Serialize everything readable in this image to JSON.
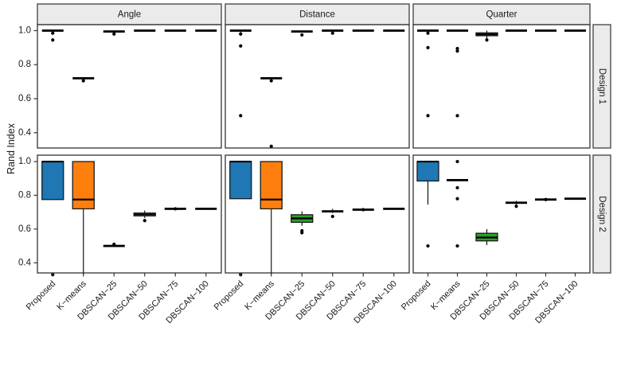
{
  "chart_data": {
    "type": "boxplot",
    "title": "",
    "ylabel": "Rand Index",
    "xlabel": "",
    "facet_cols": [
      "Angle",
      "Distance",
      "Quarter"
    ],
    "facet_rows": [
      "Design 1",
      "Design 2"
    ],
    "categories": [
      "Proposed",
      "K−means",
      "DBSCAN−25",
      "DBSCAN−50",
      "DBSCAN−75",
      "DBSCAN−100"
    ],
    "ytick_labels": [
      "1.0",
      "0.8",
      "0.6",
      "0.4"
    ],
    "ytick_values": [
      1.0,
      0.8,
      0.6,
      0.4
    ],
    "ylim": [
      0.31,
      1.04
    ],
    "grid": false,
    "legend": "none",
    "colors": {
      "proposed_fill": "#1f77b4",
      "kmeans_fill": "#ff7f0e",
      "dbscan25_fill": "#2ca02c",
      "default_fill": "#ffffff",
      "strip_fill": "#ebebeb",
      "panel_border": "#333333",
      "line": "#000000"
    },
    "panels": [
      {
        "row": "Design 1",
        "col": "Angle",
        "boxes": [
          {
            "category": "Proposed",
            "fill": "#1f77b4",
            "q1": 1.0,
            "med": 1.0,
            "q3": 1.0,
            "lo": 0.99,
            "hi": 1.0,
            "out": [
              0.985,
              0.945
            ]
          },
          {
            "category": "K−means",
            "fill": "#ff7f0e",
            "q1": 0.72,
            "med": 0.72,
            "q3": 0.72,
            "lo": 0.72,
            "hi": 0.72,
            "out": [
              0.705
            ]
          },
          {
            "category": "DBSCAN−25",
            "fill": "#2ca02c",
            "q1": 0.995,
            "med": 0.995,
            "q3": 0.995,
            "lo": 0.995,
            "hi": 0.995,
            "out": [
              0.98
            ]
          },
          {
            "category": "DBSCAN−50",
            "fill": "#ffffff",
            "q1": 1.0,
            "med": 1.0,
            "q3": 1.0,
            "lo": 1.0,
            "hi": 1.0,
            "out": []
          },
          {
            "category": "DBSCAN−75",
            "fill": "#ffffff",
            "q1": 1.0,
            "med": 1.0,
            "q3": 1.0,
            "lo": 1.0,
            "hi": 1.0,
            "out": []
          },
          {
            "category": "DBSCAN−100",
            "fill": "#ffffff",
            "q1": 1.0,
            "med": 1.0,
            "q3": 1.0,
            "lo": 1.0,
            "hi": 1.0,
            "out": []
          }
        ]
      },
      {
        "row": "Design 1",
        "col": "Distance",
        "boxes": [
          {
            "category": "Proposed",
            "fill": "#1f77b4",
            "q1": 1.0,
            "med": 1.0,
            "q3": 1.0,
            "lo": 0.99,
            "hi": 1.0,
            "out": [
              0.98,
              0.91,
              0.5
            ]
          },
          {
            "category": "K−means",
            "fill": "#ff7f0e",
            "q1": 0.72,
            "med": 0.72,
            "q3": 0.72,
            "lo": 0.72,
            "hi": 0.72,
            "out": [
              0.705,
              0.32
            ]
          },
          {
            "category": "DBSCAN−25",
            "fill": "#2ca02c",
            "q1": 0.995,
            "med": 0.995,
            "q3": 0.995,
            "lo": 0.995,
            "hi": 0.995,
            "out": [
              0.975
            ]
          },
          {
            "category": "DBSCAN−50",
            "fill": "#ffffff",
            "q1": 1.0,
            "med": 1.0,
            "q3": 1.0,
            "lo": 1.0,
            "hi": 1.0,
            "out": [
              0.985
            ]
          },
          {
            "category": "DBSCAN−75",
            "fill": "#ffffff",
            "q1": 1.0,
            "med": 1.0,
            "q3": 1.0,
            "lo": 1.0,
            "hi": 1.0,
            "out": []
          },
          {
            "category": "DBSCAN−100",
            "fill": "#ffffff",
            "q1": 1.0,
            "med": 1.0,
            "q3": 1.0,
            "lo": 1.0,
            "hi": 1.0,
            "out": []
          }
        ]
      },
      {
        "row": "Design 1",
        "col": "Quarter",
        "boxes": [
          {
            "category": "Proposed",
            "fill": "#1f77b4",
            "q1": 1.0,
            "med": 1.0,
            "q3": 1.0,
            "lo": 1.0,
            "hi": 1.0,
            "out": [
              0.985,
              0.9,
              0.5
            ]
          },
          {
            "category": "K−means",
            "fill": "#ff7f0e",
            "q1": 1.0,
            "med": 1.0,
            "q3": 1.0,
            "lo": 1.0,
            "hi": 1.0,
            "out": [
              0.895,
              0.88,
              0.5
            ]
          },
          {
            "category": "DBSCAN−25",
            "fill": "#2ca02c",
            "q1": 0.97,
            "med": 0.978,
            "q3": 0.987,
            "lo": 0.952,
            "hi": 1.0,
            "out": [
              0.945
            ]
          },
          {
            "category": "DBSCAN−50",
            "fill": "#ffffff",
            "q1": 1.0,
            "med": 1.0,
            "q3": 1.0,
            "lo": 1.0,
            "hi": 1.0,
            "out": []
          },
          {
            "category": "DBSCAN−75",
            "fill": "#ffffff",
            "q1": 1.0,
            "med": 1.0,
            "q3": 1.0,
            "lo": 1.0,
            "hi": 1.0,
            "out": []
          },
          {
            "category": "DBSCAN−100",
            "fill": "#ffffff",
            "q1": 1.0,
            "med": 1.0,
            "q3": 1.0,
            "lo": 1.0,
            "hi": 1.0,
            "out": []
          }
        ]
      },
      {
        "row": "Design 2",
        "col": "Angle",
        "boxes": [
          {
            "category": "Proposed",
            "fill": "#1f77b4",
            "q1": 0.775,
            "med": 1.0,
            "q3": 1.0,
            "lo": 0.775,
            "hi": 1.0,
            "out": [
              0.33
            ]
          },
          {
            "category": "K−means",
            "fill": "#ff7f0e",
            "q1": 0.72,
            "med": 0.775,
            "q3": 1.0,
            "lo": 0.33,
            "hi": 1.0,
            "out": []
          },
          {
            "category": "DBSCAN−25",
            "fill": "#2ca02c",
            "q1": 0.5,
            "med": 0.5,
            "q3": 0.5,
            "lo": 0.5,
            "hi": 0.5,
            "out": [
              0.51
            ]
          },
          {
            "category": "DBSCAN−50",
            "fill": "#ffffff",
            "q1": 0.678,
            "med": 0.687,
            "q3": 0.695,
            "lo": 0.665,
            "hi": 0.71,
            "out": [
              0.65
            ]
          },
          {
            "category": "DBSCAN−75",
            "fill": "#ffffff",
            "q1": 0.72,
            "med": 0.72,
            "q3": 0.72,
            "lo": 0.72,
            "hi": 0.72,
            "out": [
              0.72
            ]
          },
          {
            "category": "DBSCAN−100",
            "fill": "#ffffff",
            "q1": 0.72,
            "med": 0.72,
            "q3": 0.72,
            "lo": 0.72,
            "hi": 0.72,
            "out": []
          }
        ]
      },
      {
        "row": "Design 2",
        "col": "Distance",
        "boxes": [
          {
            "category": "Proposed",
            "fill": "#1f77b4",
            "q1": 0.78,
            "med": 1.0,
            "q3": 1.0,
            "lo": 0.78,
            "hi": 1.0,
            "out": [
              0.33
            ]
          },
          {
            "category": "K−means",
            "fill": "#ff7f0e",
            "q1": 0.72,
            "med": 0.775,
            "q3": 1.0,
            "lo": 0.33,
            "hi": 1.0,
            "out": []
          },
          {
            "category": "DBSCAN−25",
            "fill": "#2ca02c",
            "q1": 0.64,
            "med": 0.663,
            "q3": 0.685,
            "lo": 0.62,
            "hi": 0.705,
            "out": [
              0.59,
              0.578
            ]
          },
          {
            "category": "DBSCAN−50",
            "fill": "#ffffff",
            "q1": 0.7,
            "med": 0.705,
            "q3": 0.712,
            "lo": 0.695,
            "hi": 0.72,
            "out": [
              0.675
            ]
          },
          {
            "category": "DBSCAN−75",
            "fill": "#ffffff",
            "q1": 0.715,
            "med": 0.715,
            "q3": 0.715,
            "lo": 0.715,
            "hi": 0.715,
            "out": [
              0.715
            ]
          },
          {
            "category": "DBSCAN−100",
            "fill": "#ffffff",
            "q1": 0.72,
            "med": 0.72,
            "q3": 0.72,
            "lo": 0.72,
            "hi": 0.72,
            "out": []
          }
        ]
      },
      {
        "row": "Design 2",
        "col": "Quarter",
        "boxes": [
          {
            "category": "Proposed",
            "fill": "#1f77b4",
            "q1": 0.885,
            "med": 1.0,
            "q3": 1.0,
            "lo": 0.745,
            "hi": 1.0,
            "out": [
              0.5
            ]
          },
          {
            "category": "K−means",
            "fill": "#ff7f0e",
            "q1": 0.89,
            "med": 0.89,
            "q3": 0.89,
            "lo": 0.89,
            "hi": 0.89,
            "out": [
              1.0,
              0.845,
              0.78,
              0.5
            ]
          },
          {
            "category": "DBSCAN−25",
            "fill": "#2ca02c",
            "q1": 0.53,
            "med": 0.55,
            "q3": 0.575,
            "lo": 0.505,
            "hi": 0.6,
            "out": []
          },
          {
            "category": "DBSCAN−50",
            "fill": "#ffffff",
            "q1": 0.75,
            "med": 0.756,
            "q3": 0.762,
            "lo": 0.743,
            "hi": 0.768,
            "out": [
              0.735
            ]
          },
          {
            "category": "DBSCAN−75",
            "fill": "#ffffff",
            "q1": 0.775,
            "med": 0.775,
            "q3": 0.775,
            "lo": 0.775,
            "hi": 0.775,
            "out": [
              0.775
            ]
          },
          {
            "category": "DBSCAN−100",
            "fill": "#ffffff",
            "q1": 0.78,
            "med": 0.78,
            "q3": 0.78,
            "lo": 0.78,
            "hi": 0.78,
            "out": []
          }
        ]
      }
    ]
  }
}
